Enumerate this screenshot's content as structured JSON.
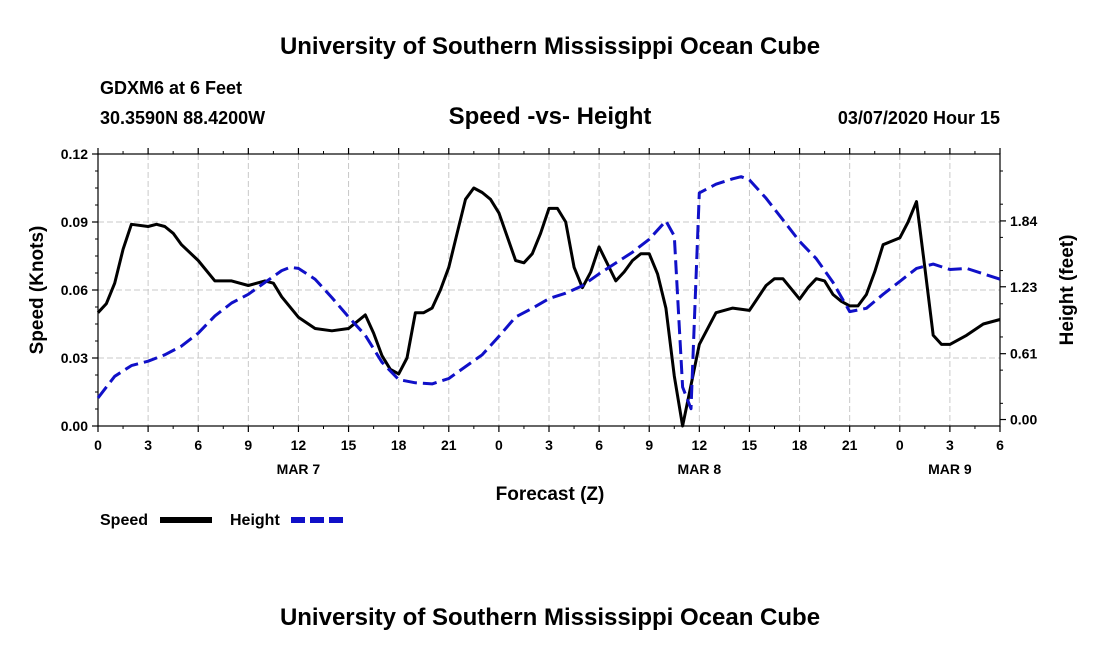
{
  "page": {
    "title_top": "University of Southern Mississippi Ocean Cube",
    "title_bottom": "University of Southern Mississippi Ocean Cube",
    "station": "GDXM6 at 6 Feet",
    "location": "30.3590N 88.4200W",
    "chart_title": "Speed -vs- Height",
    "datetime": "03/07/2020 Hour 15"
  },
  "colors": {
    "speed": "#000000",
    "height": "#1010c8",
    "grid": "#c8c8c8"
  },
  "chart_data": {
    "type": "line",
    "title": "Speed -vs- Height",
    "xlabel": "Forecast (Z)",
    "ylabel_left": "Speed (Knots)",
    "ylabel_right": "Height (feet)",
    "x_range": [
      0,
      54
    ],
    "x_unit": "hours since MAR 6 00Z",
    "x_ticks": [
      {
        "x": 0,
        "label": "0"
      },
      {
        "x": 3,
        "label": "3"
      },
      {
        "x": 6,
        "label": "6"
      },
      {
        "x": 9,
        "label": "9"
      },
      {
        "x": 12,
        "label": "12"
      },
      {
        "x": 15,
        "label": "15"
      },
      {
        "x": 18,
        "label": "18"
      },
      {
        "x": 21,
        "label": "21"
      },
      {
        "x": 24,
        "label": "0"
      },
      {
        "x": 27,
        "label": "3"
      },
      {
        "x": 30,
        "label": "6"
      },
      {
        "x": 33,
        "label": "9"
      },
      {
        "x": 36,
        "label": "12"
      },
      {
        "x": 39,
        "label": "15"
      },
      {
        "x": 42,
        "label": "18"
      },
      {
        "x": 45,
        "label": "21"
      },
      {
        "x": 48,
        "label": "0"
      },
      {
        "x": 51,
        "label": "3"
      },
      {
        "x": 54,
        "label": "6"
      }
    ],
    "date_labels": [
      {
        "x": 12,
        "label": "MAR 7"
      },
      {
        "x": 36,
        "label": "MAR 8"
      },
      {
        "x": 51,
        "label": "MAR 9"
      }
    ],
    "y_left": {
      "range": [
        0,
        0.12
      ],
      "ticks": [
        "0.00",
        "0.03",
        "0.06",
        "0.09",
        "0.12"
      ]
    },
    "y_right": {
      "range": [
        -0.06,
        2.46
      ],
      "ticks": [
        "0.00",
        "0.61",
        "1.23",
        "1.84"
      ]
    },
    "legend": {
      "position": "bottom-left",
      "speed_label": "Speed",
      "height_label": "Height"
    },
    "series": [
      {
        "name": "Speed",
        "axis": "left",
        "style": "solid",
        "points": [
          [
            0,
            0.05
          ],
          [
            0.5,
            0.054
          ],
          [
            1,
            0.063
          ],
          [
            1.5,
            0.078
          ],
          [
            2,
            0.089
          ],
          [
            3,
            0.088
          ],
          [
            3.5,
            0.089
          ],
          [
            4,
            0.088
          ],
          [
            4.5,
            0.085
          ],
          [
            5,
            0.08
          ],
          [
            6,
            0.073
          ],
          [
            7,
            0.064
          ],
          [
            8,
            0.064
          ],
          [
            9,
            0.062
          ],
          [
            10,
            0.064
          ],
          [
            10.5,
            0.063
          ],
          [
            11,
            0.057
          ],
          [
            12,
            0.048
          ],
          [
            13,
            0.043
          ],
          [
            14,
            0.042
          ],
          [
            15,
            0.043
          ],
          [
            16,
            0.049
          ],
          [
            16.5,
            0.041
          ],
          [
            17,
            0.031
          ],
          [
            17.5,
            0.025
          ],
          [
            18,
            0.023
          ],
          [
            18.5,
            0.03
          ],
          [
            19,
            0.05
          ],
          [
            19.5,
            0.05
          ],
          [
            20,
            0.052
          ],
          [
            20.5,
            0.06
          ],
          [
            21,
            0.07
          ],
          [
            21.5,
            0.085
          ],
          [
            22,
            0.1
          ],
          [
            22.5,
            0.105
          ],
          [
            23,
            0.103
          ],
          [
            23.5,
            0.1
          ],
          [
            24,
            0.094
          ],
          [
            25,
            0.073
          ],
          [
            25.5,
            0.072
          ],
          [
            26,
            0.076
          ],
          [
            26.5,
            0.085
          ],
          [
            27,
            0.096
          ],
          [
            27.5,
            0.096
          ],
          [
            28,
            0.09
          ],
          [
            28.5,
            0.07
          ],
          [
            29,
            0.061
          ],
          [
            29.5,
            0.068
          ],
          [
            30,
            0.079
          ],
          [
            31,
            0.064
          ],
          [
            31.5,
            0.068
          ],
          [
            32,
            0.073
          ],
          [
            32.5,
            0.076
          ],
          [
            33,
            0.076
          ],
          [
            33.5,
            0.067
          ],
          [
            34,
            0.052
          ],
          [
            34.5,
            0.022
          ],
          [
            35,
            0.0
          ],
          [
            35.5,
            0.018
          ],
          [
            36,
            0.036
          ],
          [
            37,
            0.05
          ],
          [
            38,
            0.052
          ],
          [
            39,
            0.051
          ],
          [
            40,
            0.062
          ],
          [
            40.5,
            0.065
          ],
          [
            41,
            0.065
          ],
          [
            42,
            0.056
          ],
          [
            42.5,
            0.061
          ],
          [
            43,
            0.065
          ],
          [
            43.5,
            0.064
          ],
          [
            44,
            0.058
          ],
          [
            44.5,
            0.055
          ],
          [
            45,
            0.053
          ],
          [
            45.5,
            0.053
          ],
          [
            46,
            0.058
          ],
          [
            46.5,
            0.068
          ],
          [
            47,
            0.08
          ],
          [
            48,
            0.083
          ],
          [
            48.5,
            0.09
          ],
          [
            49,
            0.099
          ],
          [
            49.5,
            0.07
          ],
          [
            50,
            0.04
          ],
          [
            50.5,
            0.036
          ],
          [
            51,
            0.036
          ],
          [
            52,
            0.04
          ],
          [
            53,
            0.045
          ],
          [
            54,
            0.047
          ]
        ]
      },
      {
        "name": "Height",
        "axis": "right",
        "style": "dashed",
        "points": [
          [
            0,
            0.2
          ],
          [
            1,
            0.4
          ],
          [
            2,
            0.5
          ],
          [
            3,
            0.54
          ],
          [
            4,
            0.6
          ],
          [
            5,
            0.68
          ],
          [
            6,
            0.8
          ],
          [
            7,
            0.96
          ],
          [
            8,
            1.08
          ],
          [
            9,
            1.16
          ],
          [
            10,
            1.27
          ],
          [
            11,
            1.38
          ],
          [
            11.5,
            1.41
          ],
          [
            12,
            1.4
          ],
          [
            13,
            1.3
          ],
          [
            14,
            1.13
          ],
          [
            15,
            0.95
          ],
          [
            16,
            0.78
          ],
          [
            17,
            0.53
          ],
          [
            18,
            0.37
          ],
          [
            19,
            0.34
          ],
          [
            20,
            0.33
          ],
          [
            21,
            0.38
          ],
          [
            22,
            0.49
          ],
          [
            23,
            0.6
          ],
          [
            24,
            0.77
          ],
          [
            25,
            0.95
          ],
          [
            26,
            1.03
          ],
          [
            27,
            1.12
          ],
          [
            28,
            1.17
          ],
          [
            29,
            1.24
          ],
          [
            30,
            1.35
          ],
          [
            31,
            1.45
          ],
          [
            32,
            1.55
          ],
          [
            33,
            1.67
          ],
          [
            34,
            1.84
          ],
          [
            34.5,
            1.7
          ],
          [
            35,
            0.3
          ],
          [
            35.5,
            0.1
          ],
          [
            36,
            2.1
          ],
          [
            37,
            2.18
          ],
          [
            38,
            2.23
          ],
          [
            38.5,
            2.25
          ],
          [
            39,
            2.22
          ],
          [
            40,
            2.05
          ],
          [
            41,
            1.85
          ],
          [
            42,
            1.65
          ],
          [
            43,
            1.49
          ],
          [
            44,
            1.27
          ],
          [
            45,
            1.0
          ],
          [
            46,
            1.03
          ],
          [
            47,
            1.16
          ],
          [
            48,
            1.28
          ],
          [
            49,
            1.4
          ],
          [
            50,
            1.44
          ],
          [
            51,
            1.39
          ],
          [
            52,
            1.4
          ],
          [
            53,
            1.35
          ],
          [
            54,
            1.3
          ]
        ]
      }
    ]
  }
}
